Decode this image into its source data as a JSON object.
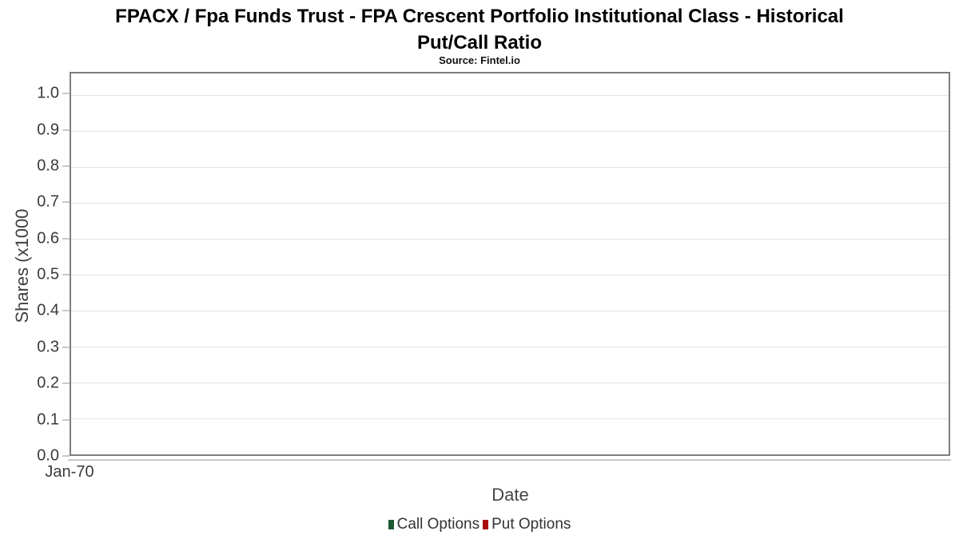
{
  "page": {
    "title_lines": [
      "FPACX / Fpa Funds Trust - FPA Crescent Portfolio Institutional Class - Historical",
      "Put/Call Ratio"
    ],
    "subtitle": "Source: Fintel.io"
  },
  "chart_data": {
    "type": "line",
    "title": "FPACX / Fpa Funds Trust - FPA Crescent Portfolio Institutional Class - Historical Put/Call Ratio",
    "subtitle": "Source: Fintel.io",
    "xlabel": "Date",
    "ylabel": "Shares (x1000",
    "x_tick_labels": [
      "Jan-70"
    ],
    "y_tick_labels": [
      "0.0",
      "0.1",
      "0.2",
      "0.3",
      "0.4",
      "0.5",
      "0.6",
      "0.7",
      "0.8",
      "0.9",
      "1.0"
    ],
    "ylim": [
      0,
      1.06
    ],
    "grid": true,
    "legend_position": "bottom",
    "series": [
      {
        "name": "Call Options",
        "color": "#1e5a32",
        "x": [],
        "values": []
      },
      {
        "name": "Put Options",
        "color": "#aa0d0d",
        "x": [],
        "values": []
      }
    ]
  },
  "colors": {
    "plot_border": "#7d7d7d",
    "gridline": "#e2e2e2",
    "axis_line": "#c9c9c9",
    "tick_label_text": "#3a3a3a",
    "axis_title_text": "#454545",
    "legend_text": "#333333",
    "call_options_green": "#1e5a32",
    "put_options_red": "#aa0d0d"
  }
}
